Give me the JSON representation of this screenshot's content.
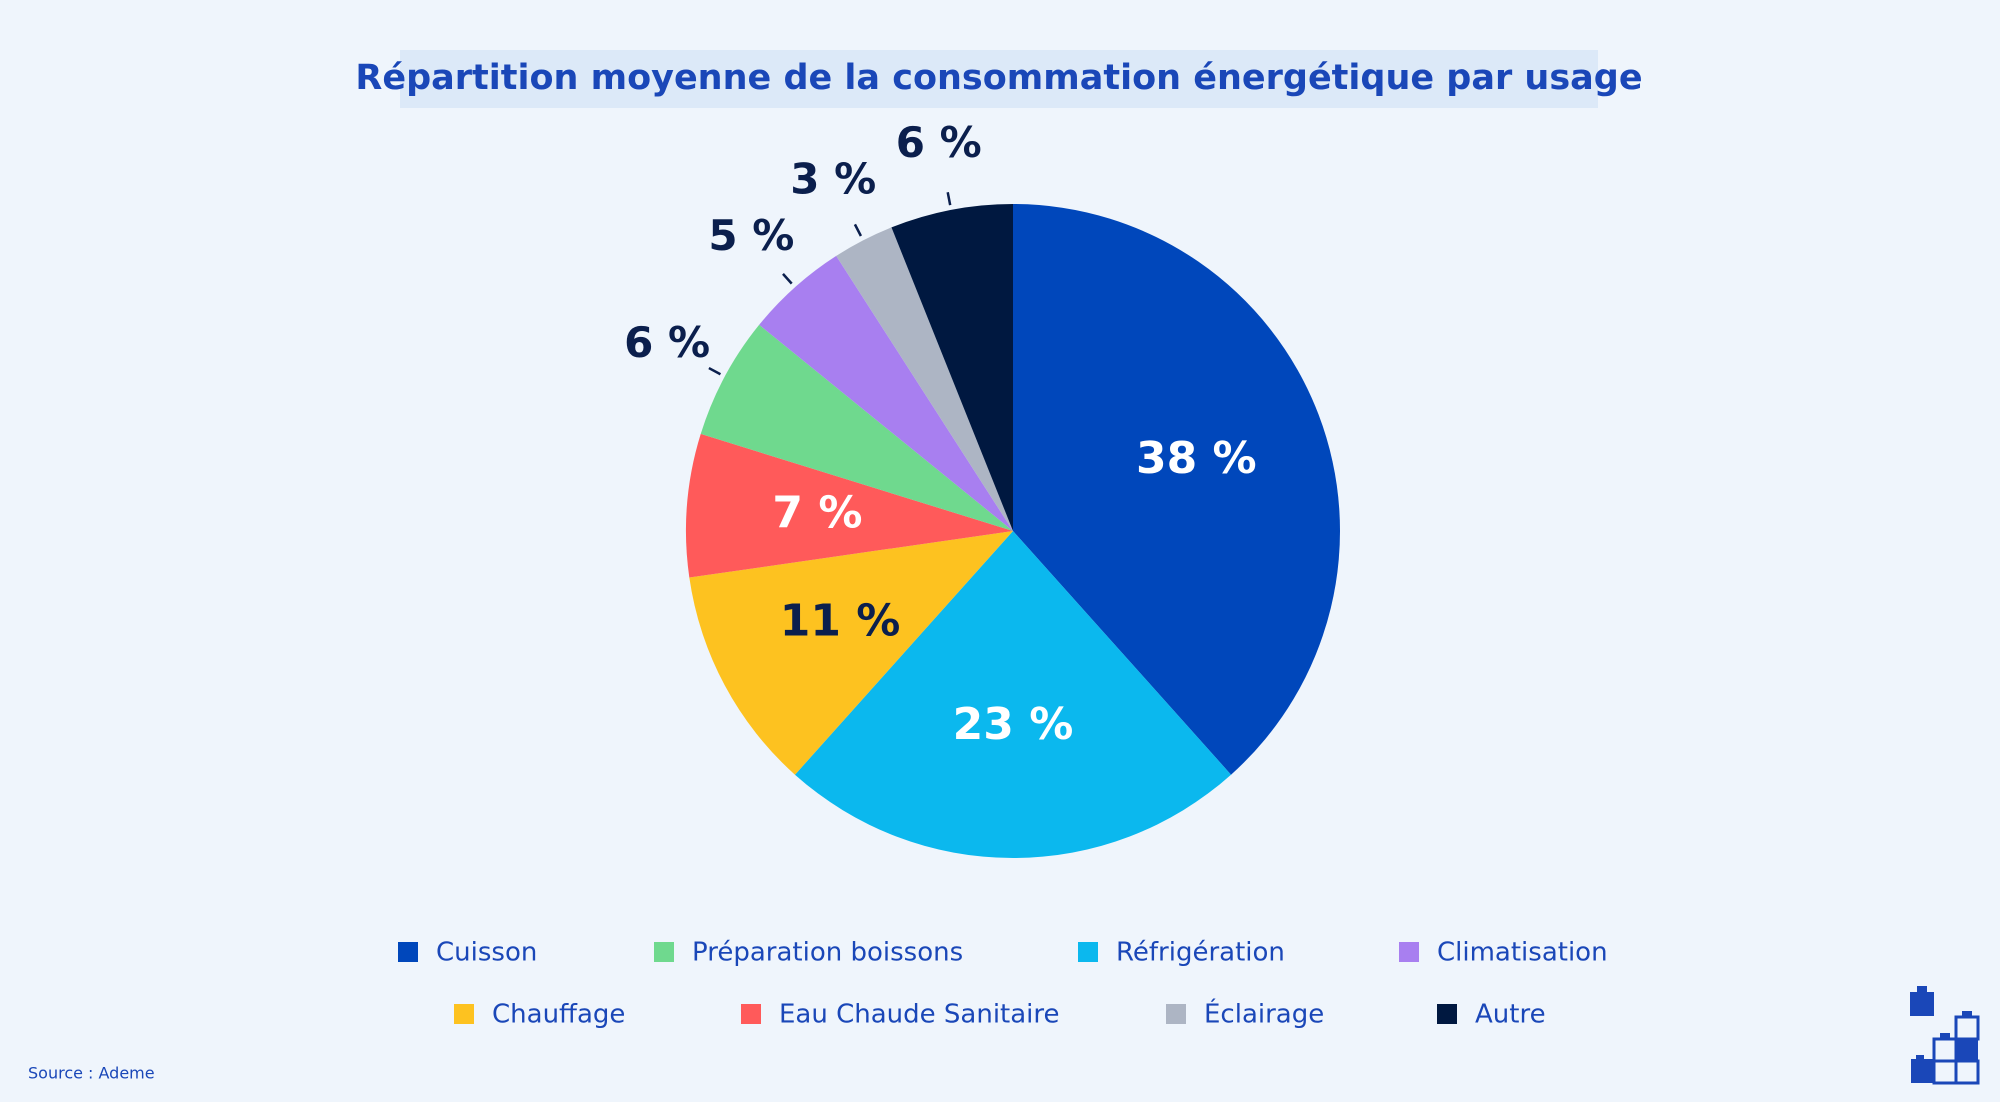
{
  "chart_data": {
    "type": "pie",
    "title": "Répartition moyenne de la consommation énergétique par usage",
    "categories": [
      "Cuisson",
      "Réfrigération",
      "Chauffage",
      "Eau Chaude Sanitaire",
      "Préparation boissons",
      "Climatisation",
      "Éclairage",
      "Autre"
    ],
    "values": [
      38,
      23,
      11,
      7,
      6,
      5,
      3,
      6
    ],
    "value_labels": [
      "38 %",
      "23 %",
      "11 %",
      "7 %",
      "6 %",
      "5 %",
      "3 %",
      "6 %"
    ],
    "colors": [
      "#0047bb",
      "#0bb8ee",
      "#fdc220",
      "#ff5a5a",
      "#6fd98e",
      "#a87ff0",
      "#adb5c4",
      "#001840"
    ],
    "legend": "bottom",
    "source": "Source : Ademe"
  }
}
